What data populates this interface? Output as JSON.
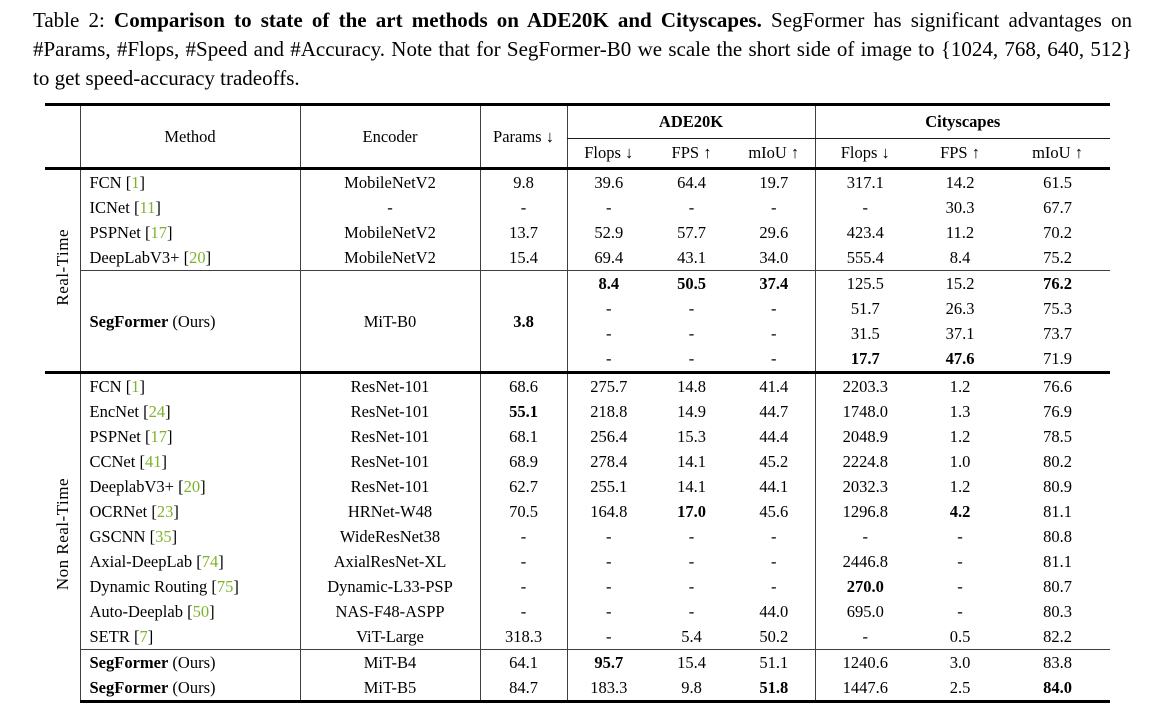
{
  "caption": {
    "prefix": "Table 2: ",
    "bold": "Comparison to state of the art methods on ADE20K and Cityscapes.",
    "rest": " SegFormer has significant advantages on #Params, #Flops, #Speed and #Accuracy. Note that for SegFormer-B0 we scale the short side of image to {1024, 768, 640, 512} to get speed-accuracy tradeoffs."
  },
  "colors": {
    "citation": "#7db32a",
    "rule_thin": "#3f3f3f",
    "rule_thick": "#000000"
  },
  "table": {
    "headers": {
      "method": "Method",
      "encoder": "Encoder",
      "params": "Params ↓",
      "group_ade": "ADE20K",
      "group_city": "Cityscapes",
      "sub": [
        "Flops ↓",
        "FPS ↑",
        "mIoU ↑"
      ]
    },
    "sections": [
      {
        "label": "Real-Time",
        "blocks": [
          {
            "rows": [
              {
                "method": {
                  "name": "FCN",
                  "cite": "1"
                },
                "encoder": "MobileNetV2",
                "params": "9.8",
                "ade": [
                  "39.6",
                  "64.4",
                  "19.7"
                ],
                "city": [
                  "317.1",
                  "14.2",
                  "61.5"
                ]
              },
              {
                "method": {
                  "name": "ICNet",
                  "cite": "11"
                },
                "encoder": "-",
                "params": "-",
                "ade": [
                  "-",
                  "-",
                  "-"
                ],
                "city": [
                  "-",
                  "30.3",
                  "67.7"
                ]
              },
              {
                "method": {
                  "name": "PSPNet",
                  "cite": "17"
                },
                "encoder": "MobileNetV2",
                "params": "13.7",
                "ade": [
                  "52.9",
                  "57.7",
                  "29.6"
                ],
                "city": [
                  "423.4",
                  "11.2",
                  "70.2"
                ]
              },
              {
                "method": {
                  "name": "DeepLabV3+",
                  "cite": "20"
                },
                "encoder": "MobileNetV2",
                "params": "15.4",
                "ade": [
                  "69.4",
                  "43.1",
                  "34.0"
                ],
                "city": [
                  "555.4",
                  "8.4",
                  "75.2"
                ]
              }
            ]
          },
          {
            "multirow": true,
            "method": {
              "name": "SegFormer",
              "bold": true,
              "suffix": " (Ours)"
            },
            "encoder": "MiT-B0",
            "params": {
              "v": "3.8",
              "b": true
            },
            "rows": [
              {
                "ade": [
                  {
                    "v": "8.4",
                    "b": true
                  },
                  {
                    "v": "50.5",
                    "b": true
                  },
                  {
                    "v": "37.4",
                    "b": true
                  }
                ],
                "city": [
                  "125.5",
                  "15.2",
                  {
                    "v": "76.2",
                    "b": true
                  }
                ]
              },
              {
                "ade": [
                  "-",
                  "-",
                  "-"
                ],
                "city": [
                  "51.7",
                  "26.3",
                  "75.3"
                ]
              },
              {
                "ade": [
                  "-",
                  "-",
                  "-"
                ],
                "city": [
                  "31.5",
                  "37.1",
                  "73.7"
                ]
              },
              {
                "ade": [
                  "-",
                  "-",
                  "-"
                ],
                "city": [
                  {
                    "v": "17.7",
                    "b": true
                  },
                  {
                    "v": "47.6",
                    "b": true
                  },
                  "71.9"
                ]
              }
            ]
          }
        ]
      },
      {
        "label": "Non Real-Time",
        "blocks": [
          {
            "rows": [
              {
                "method": {
                  "name": "FCN",
                  "cite": "1"
                },
                "encoder": "ResNet-101",
                "params": "68.6",
                "ade": [
                  "275.7",
                  "14.8",
                  "41.4"
                ],
                "city": [
                  "2203.3",
                  "1.2",
                  "76.6"
                ]
              },
              {
                "method": {
                  "name": "EncNet",
                  "cite": "24"
                },
                "encoder": "ResNet-101",
                "params": {
                  "v": "55.1",
                  "b": true
                },
                "ade": [
                  "218.8",
                  "14.9",
                  "44.7"
                ],
                "city": [
                  "1748.0",
                  "1.3",
                  "76.9"
                ]
              },
              {
                "method": {
                  "name": "PSPNet",
                  "cite": "17"
                },
                "encoder": "ResNet-101",
                "params": "68.1",
                "ade": [
                  "256.4",
                  "15.3",
                  "44.4"
                ],
                "city": [
                  "2048.9",
                  "1.2",
                  "78.5"
                ]
              },
              {
                "method": {
                  "name": "CCNet",
                  "cite": "41"
                },
                "encoder": "ResNet-101",
                "params": "68.9",
                "ade": [
                  "278.4",
                  "14.1",
                  "45.2"
                ],
                "city": [
                  "2224.8",
                  "1.0",
                  "80.2"
                ]
              },
              {
                "method": {
                  "name": "DeeplabV3+",
                  "cite": "20"
                },
                "encoder": "ResNet-101",
                "params": "62.7",
                "ade": [
                  "255.1",
                  "14.1",
                  "44.1"
                ],
                "city": [
                  "2032.3",
                  "1.2",
                  "80.9"
                ]
              },
              {
                "method": {
                  "name": "OCRNet",
                  "cite": "23"
                },
                "encoder": "HRNet-W48",
                "params": "70.5",
                "ade": [
                  "164.8",
                  {
                    "v": "17.0",
                    "b": true
                  },
                  "45.6"
                ],
                "city": [
                  "1296.8",
                  {
                    "v": "4.2",
                    "b": true
                  },
                  "81.1"
                ]
              },
              {
                "method": {
                  "name": "GSCNN",
                  "cite": "35"
                },
                "encoder": "WideResNet38",
                "params": "-",
                "ade": [
                  "-",
                  "-",
                  "-"
                ],
                "city": [
                  "-",
                  "-",
                  "80.8"
                ]
              },
              {
                "method": {
                  "name": "Axial-DeepLab",
                  "cite": "74"
                },
                "encoder": "AxialResNet-XL",
                "params": "-",
                "ade": [
                  "-",
                  "-",
                  "-"
                ],
                "city": [
                  "2446.8",
                  "-",
                  "81.1"
                ]
              },
              {
                "method": {
                  "name": "Dynamic Routing",
                  "cite": "75"
                },
                "encoder": "Dynamic-L33-PSP",
                "params": "-",
                "ade": [
                  "-",
                  "-",
                  "-"
                ],
                "city": [
                  {
                    "v": "270.0",
                    "b": true
                  },
                  "-",
                  "80.7"
                ]
              },
              {
                "method": {
                  "name": "Auto-Deeplab",
                  "cite": "50"
                },
                "encoder": "NAS-F48-ASPP",
                "params": "-",
                "ade": [
                  "-",
                  "-",
                  "44.0"
                ],
                "city": [
                  "695.0",
                  "-",
                  "80.3"
                ]
              },
              {
                "method": {
                  "name": "SETR",
                  "cite": "7"
                },
                "encoder": "ViT-Large",
                "params": "318.3",
                "ade": [
                  "-",
                  "5.4",
                  "50.2"
                ],
                "city": [
                  "-",
                  "0.5",
                  "82.2"
                ]
              }
            ]
          },
          {
            "rows": [
              {
                "method": {
                  "name": "SegFormer",
                  "bold": true,
                  "suffix": " (Ours)"
                },
                "encoder": "MiT-B4",
                "params": "64.1",
                "ade": [
                  {
                    "v": "95.7",
                    "b": true
                  },
                  "15.4",
                  "51.1"
                ],
                "city": [
                  "1240.6",
                  "3.0",
                  "83.8"
                ]
              },
              {
                "method": {
                  "name": "SegFormer",
                  "bold": true,
                  "suffix": " (Ours)"
                },
                "encoder": "MiT-B5",
                "params": "84.7",
                "ade": [
                  "183.3",
                  "9.8",
                  {
                    "v": "51.8",
                    "b": true
                  }
                ],
                "city": [
                  "1447.6",
                  "2.5",
                  {
                    "v": "84.0",
                    "b": true
                  }
                ]
              }
            ]
          }
        ]
      }
    ]
  }
}
